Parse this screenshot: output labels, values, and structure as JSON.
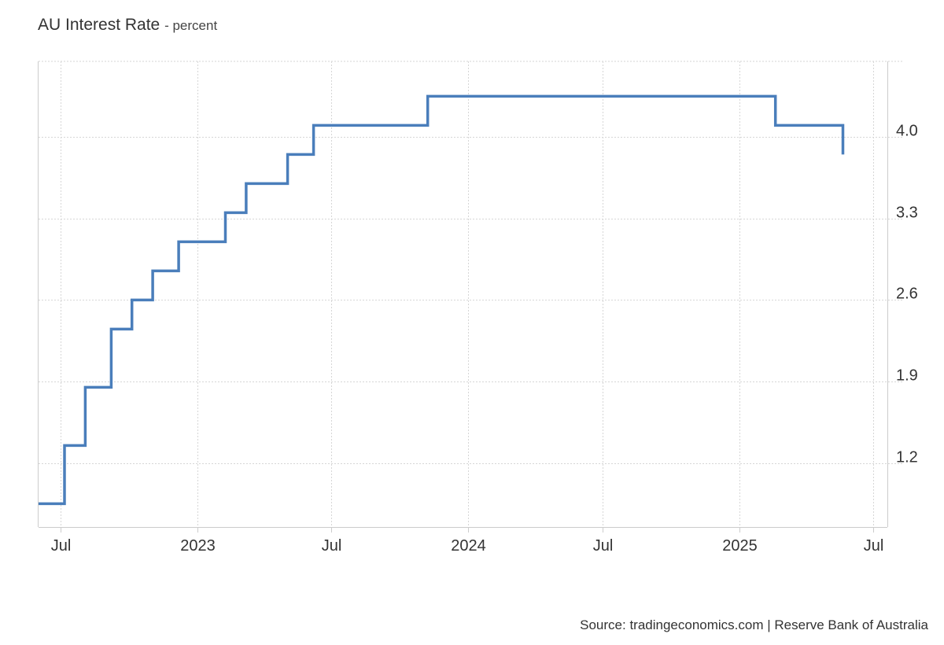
{
  "header": {
    "title": "AU Interest Rate",
    "subtitle": "- percent"
  },
  "footer": {
    "source": "Source: tradingeconomics.com | Reserve Bank of Australia"
  },
  "chart_data": {
    "type": "line",
    "line_style": "step",
    "title": "AU Interest Rate",
    "subtitle": "- percent",
    "xlabel": "",
    "ylabel": "",
    "y_axis_side": "right",
    "grid": true,
    "color": "#4A7EBB",
    "xlim": [
      "2022-06-01",
      "2025-07-20"
    ],
    "ylim": [
      0.65,
      4.65
    ],
    "y_ticks": [
      {
        "value": 1.2,
        "label": "1.2"
      },
      {
        "value": 1.9,
        "label": "1.9"
      },
      {
        "value": 2.6,
        "label": "2.6"
      },
      {
        "value": 3.3,
        "label": "3.3"
      },
      {
        "value": 4.0,
        "label": "4.0"
      }
    ],
    "x_ticks": [
      {
        "date": "2022-07-01",
        "label": "Jul"
      },
      {
        "date": "2023-01-01",
        "label": "2023"
      },
      {
        "date": "2023-07-01",
        "label": "Jul"
      },
      {
        "date": "2024-01-01",
        "label": "2024"
      },
      {
        "date": "2024-07-01",
        "label": "Jul"
      },
      {
        "date": "2025-01-01",
        "label": "2025"
      },
      {
        "date": "2025-07-01",
        "label": "Jul"
      }
    ],
    "series": [
      {
        "points": [
          {
            "x": "2022-06-01",
            "y": 0.85
          },
          {
            "x": "2022-07-06",
            "y": 1.35
          },
          {
            "x": "2022-08-03",
            "y": 1.85
          },
          {
            "x": "2022-09-07",
            "y": 2.35
          },
          {
            "x": "2022-10-05",
            "y": 2.6
          },
          {
            "x": "2022-11-02",
            "y": 2.85
          },
          {
            "x": "2022-12-07",
            "y": 3.1
          },
          {
            "x": "2023-02-08",
            "y": 3.35
          },
          {
            "x": "2023-03-08",
            "y": 3.6
          },
          {
            "x": "2023-05-03",
            "y": 3.85
          },
          {
            "x": "2023-06-07",
            "y": 4.1
          },
          {
            "x": "2023-11-08",
            "y": 4.35
          },
          {
            "x": "2025-02-19",
            "y": 4.1
          },
          {
            "x": "2025-05-21",
            "y": 3.85
          }
        ]
      }
    ]
  }
}
